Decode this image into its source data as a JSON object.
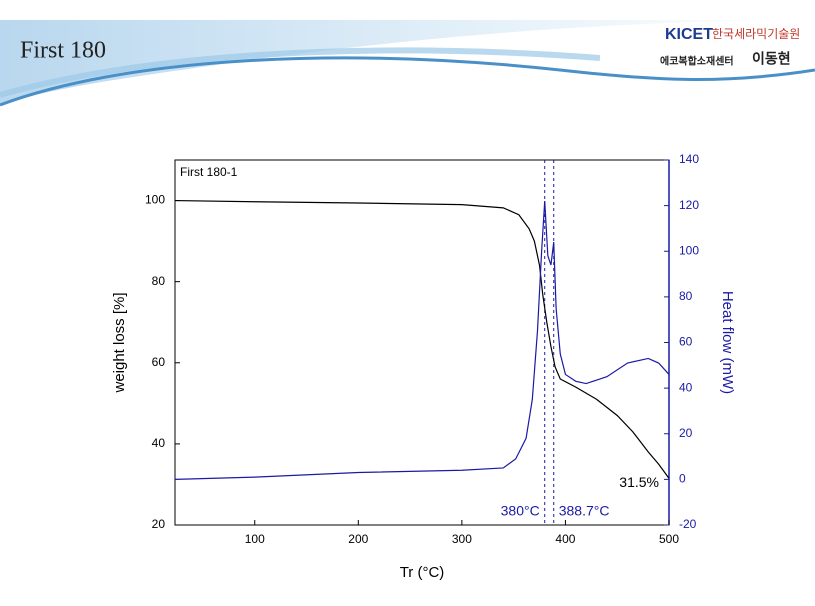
{
  "header": {
    "title": "First 180",
    "logo": "KICET",
    "org": "한국세라믹기술원",
    "center": "에코복합소재센터",
    "author": "이동현"
  },
  "chart_data": {
    "type": "line",
    "title": "First 180-1",
    "x_label": "Tr (°C)",
    "y_label": "weight loss [%]",
    "y2_label": "Heat flow (mW)",
    "xlim": [
      23,
      500
    ],
    "xticks": [
      100,
      200,
      300,
      400,
      500
    ],
    "ylim": [
      20,
      110
    ],
    "yticks": [
      20,
      40,
      60,
      80,
      100
    ],
    "y2lim": [
      -20,
      140
    ],
    "y2ticks": [
      -20,
      0,
      20,
      40,
      60,
      80,
      100,
      120,
      140
    ],
    "series": [
      {
        "color": "#000000",
        "axis": "y",
        "x": [
          23,
          100,
          200,
          300,
          340,
          355,
          365,
          370,
          375,
          378,
          382,
          386,
          390,
          395,
          410,
          430,
          450,
          465,
          480,
          490,
          500
        ],
        "values": [
          100,
          99.7,
          99.4,
          99,
          98.2,
          96.5,
          93,
          90,
          84,
          77,
          70,
          64,
          59,
          56,
          54,
          51,
          47,
          43,
          38,
          35,
          31.5
        ]
      },
      {
        "color": "#1a1aa6",
        "axis": "y2",
        "x": [
          23,
          100,
          200,
          300,
          340,
          352,
          362,
          368,
          373,
          377,
          380,
          383,
          386,
          388.7,
          391,
          395,
          400,
          410,
          420,
          440,
          460,
          480,
          490,
          500
        ],
        "values": [
          0,
          1,
          3,
          4,
          5,
          9,
          18,
          35,
          65,
          100,
          122,
          98,
          94,
          104,
          75,
          55,
          46,
          43,
          42,
          45,
          51,
          53,
          51,
          46
        ]
      }
    ],
    "annotations": [
      {
        "label": "380°C",
        "x": 380,
        "color": "#1a1aa6"
      },
      {
        "label": "388.7°C",
        "x": 388.7,
        "color": "#1a1aa6"
      },
      {
        "label": "31.5%",
        "x": 500,
        "y": 31.5,
        "color": "#000000"
      }
    ]
  }
}
